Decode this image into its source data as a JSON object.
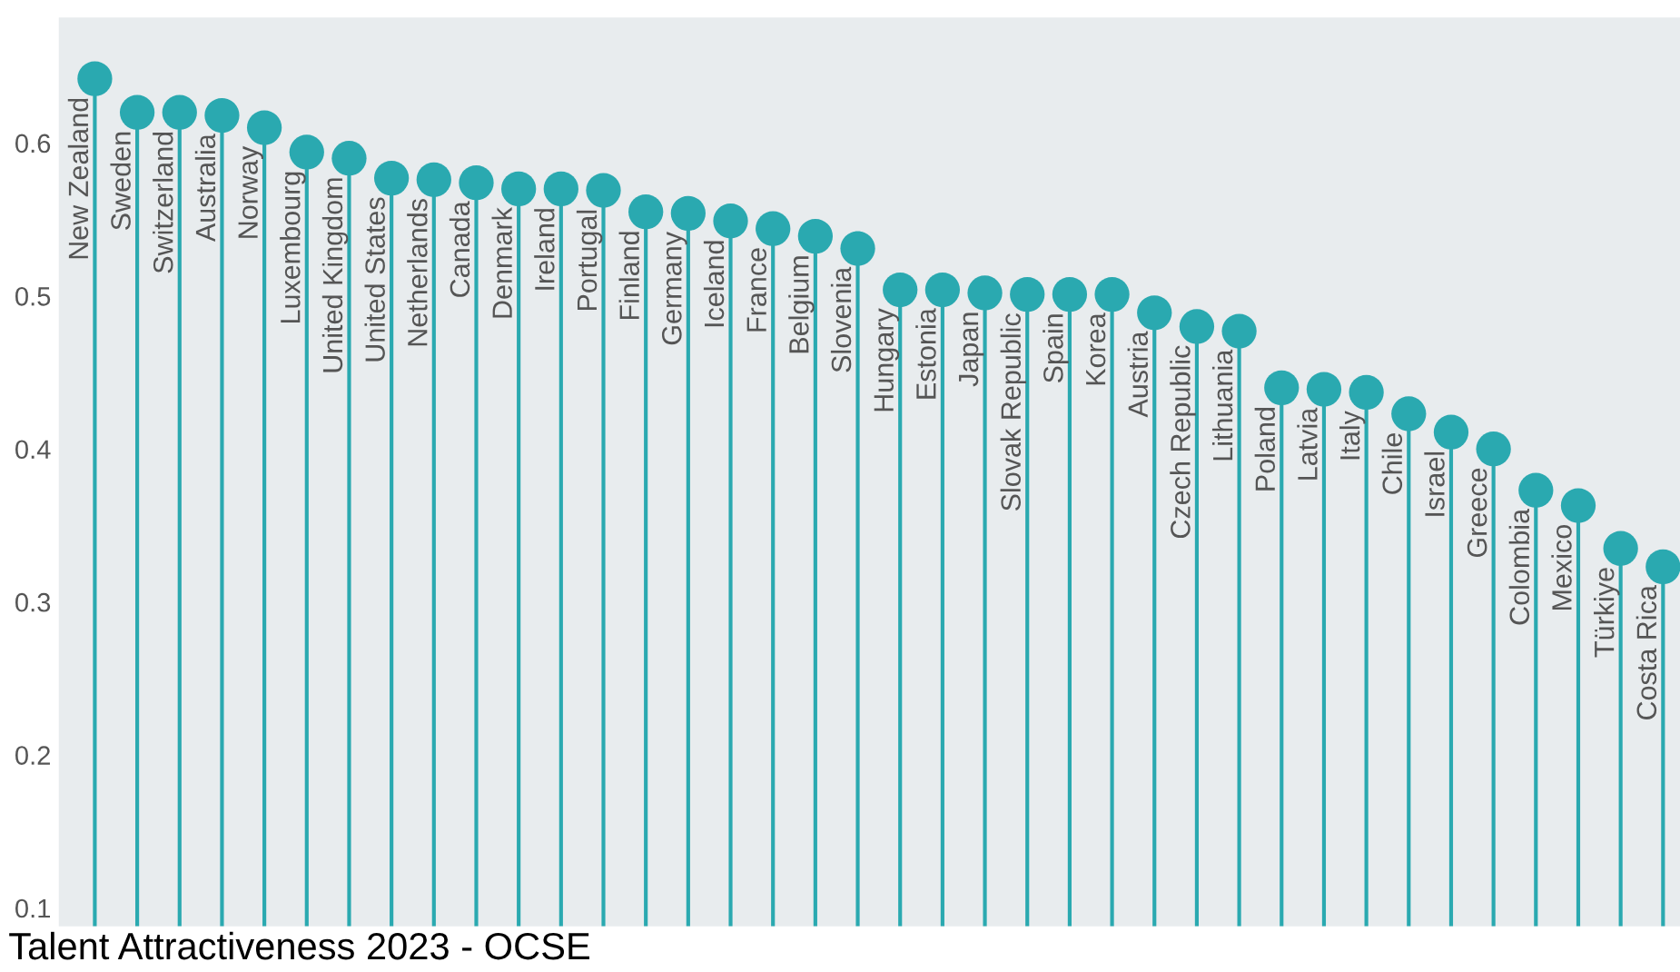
{
  "chart_data": {
    "type": "lollipop",
    "title": "Talent Attractiveness 2023 - OCSE",
    "categories": [
      "New Zealand",
      "Sweden",
      "Switzerland",
      "Australia",
      "Norway",
      "Luxembourg",
      "United Kingdom",
      "United States",
      "Netherlands",
      "Canada",
      "Denmark",
      "Ireland",
      "Portugal",
      "Finland",
      "Germany",
      "Iceland",
      "France",
      "Belgium",
      "Slovenia",
      "Hungary",
      "Estonia",
      "Japan",
      "Slovak Republic",
      "Spain",
      "Korea",
      "Austria",
      "Czech Republic",
      "Lithuania",
      "Poland",
      "Latvia",
      "Italy",
      "Chile",
      "Israel",
      "Greece",
      "Colombia",
      "Mexico",
      "Türkiye",
      "Costa Rica"
    ],
    "values": [
      0.642,
      0.62,
      0.62,
      0.618,
      0.61,
      0.594,
      0.59,
      0.577,
      0.576,
      0.574,
      0.57,
      0.57,
      0.569,
      0.555,
      0.554,
      0.549,
      0.544,
      0.539,
      0.531,
      0.504,
      0.504,
      0.502,
      0.501,
      0.501,
      0.501,
      0.489,
      0.48,
      0.477,
      0.44,
      0.439,
      0.437,
      0.423,
      0.411,
      0.4,
      0.373,
      0.363,
      0.335,
      0.323
    ],
    "color": "#2aa9b0",
    "marker": "circle",
    "ylim": [
      0.088,
      0.682
    ],
    "yticks": [
      0.1,
      0.2,
      0.3,
      0.4,
      0.5,
      0.6
    ]
  }
}
